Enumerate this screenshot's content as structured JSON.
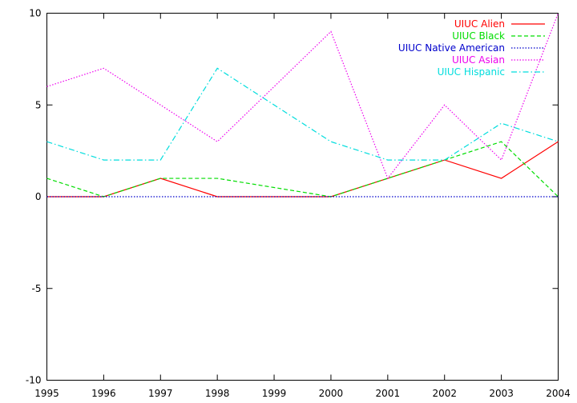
{
  "chart_data": {
    "type": "line",
    "x": [
      1995,
      1996,
      1997,
      1998,
      1999,
      2000,
      2001,
      2002,
      2003,
      2004
    ],
    "xlim": [
      1995,
      2004
    ],
    "ylim": [
      -10,
      10
    ],
    "xticks": [
      "1995",
      "1996",
      "1997",
      "1998",
      "1999",
      "2000",
      "2001",
      "2002",
      "2003",
      "2004"
    ],
    "yticks": [
      "-10",
      "-5",
      "0",
      "5",
      "10"
    ],
    "grid": false,
    "legend_position": "top-right",
    "series": [
      {
        "name": "UIUC Alien",
        "color": "#ff0000",
        "dash": "solid",
        "values": [
          0,
          0,
          1,
          0,
          0,
          0,
          1,
          2,
          1,
          3
        ]
      },
      {
        "name": "UIUC Black",
        "color": "#00dd00",
        "dash": "dashed",
        "values": [
          1,
          0,
          1,
          1,
          0.5,
          0,
          1,
          2,
          3,
          0
        ]
      },
      {
        "name": "UIUC Native American",
        "color": "#0000cc",
        "dash": "dotted",
        "values": [
          0,
          0,
          0,
          0,
          0,
          0,
          0,
          0,
          0,
          0
        ]
      },
      {
        "name": "UIUC Asian",
        "color": "#ee00ee",
        "dash": "dotted",
        "values": [
          6,
          7,
          5,
          3,
          6,
          9,
          1,
          5,
          2,
          10
        ]
      },
      {
        "name": "UIUC Hispanic",
        "color": "#00dddd",
        "dash": "dashdot",
        "values": [
          3,
          2,
          2,
          7,
          5,
          3,
          2,
          2,
          4,
          3
        ]
      }
    ]
  }
}
